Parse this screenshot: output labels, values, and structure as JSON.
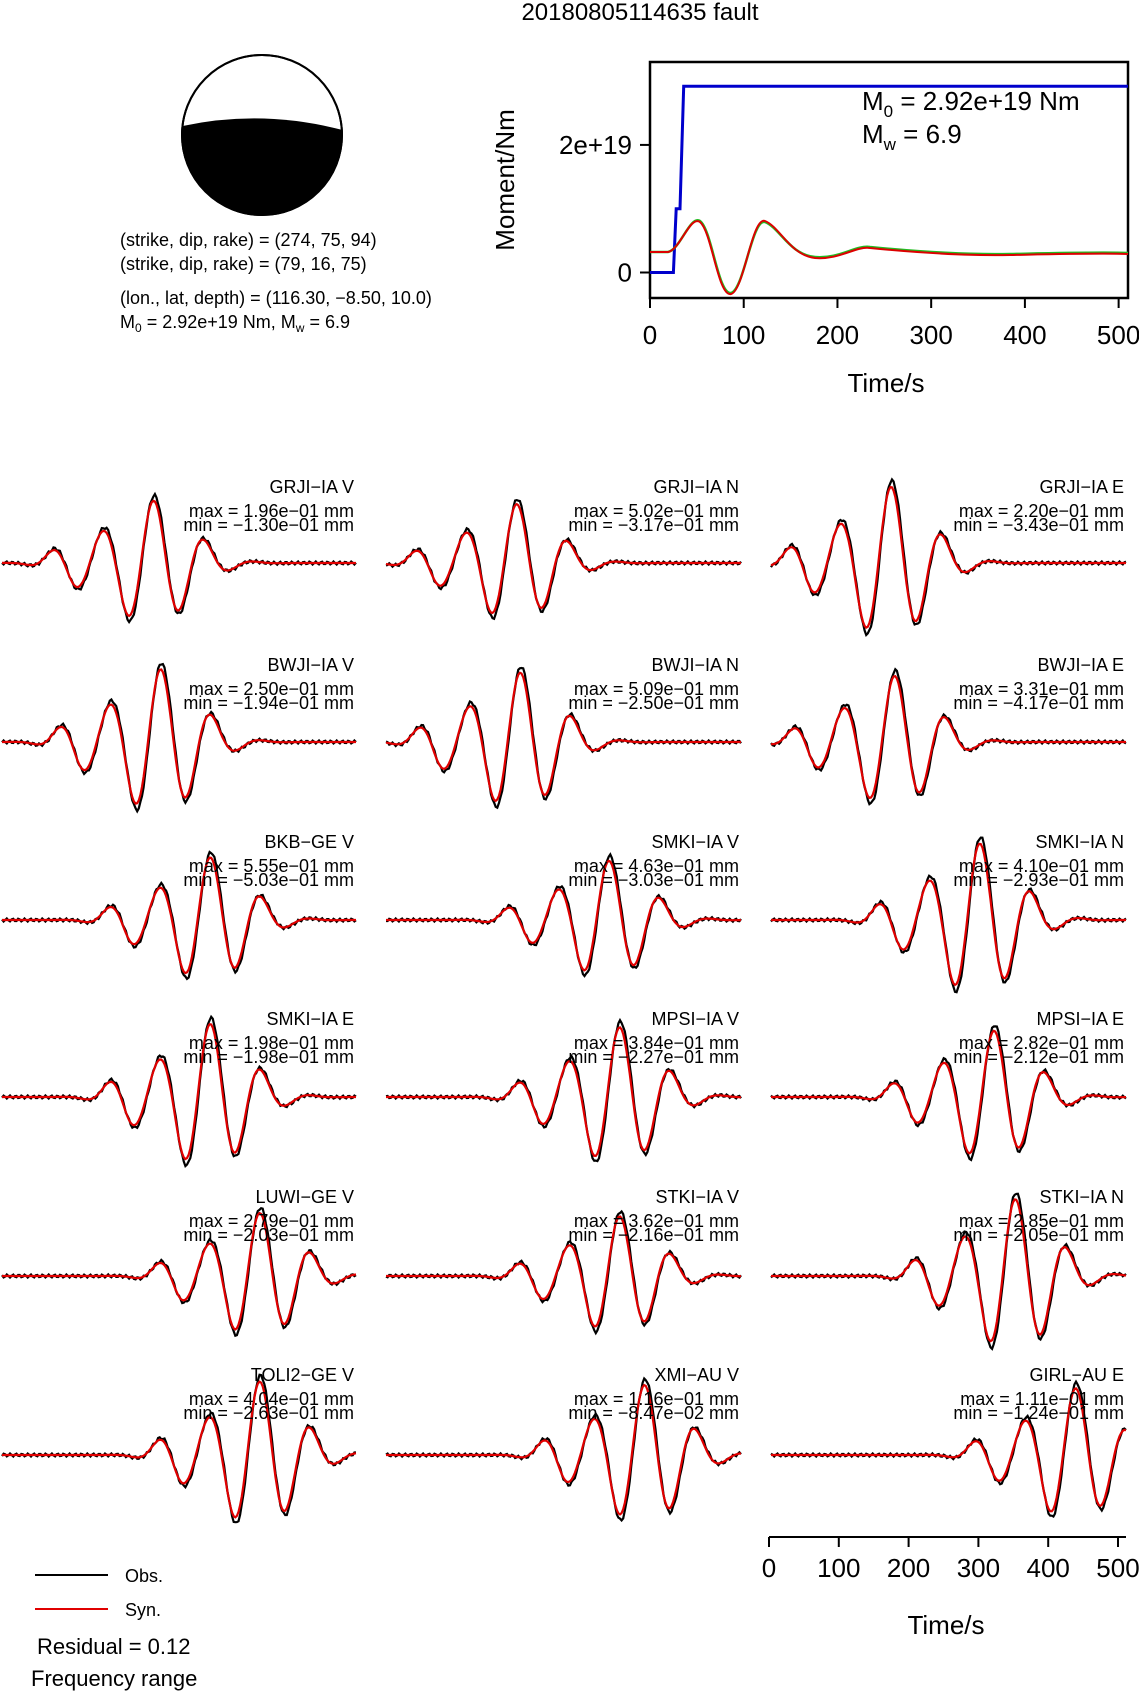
{
  "title": "20180805114635 fault",
  "beachball": {
    "np1": "(strike, dip, rake) = (274, 75, 94)",
    "np2": "(strike, dip, rake) = (79, 16, 75)",
    "location": "(lon., lat, depth) = (116.30, −8.50, 10.0)",
    "m0_line": {
      "m": "M",
      "sub": "0",
      "rest": " = 2.92e+19 Nm, M",
      "sub2": "w",
      "rest2": " = 6.9"
    }
  },
  "moment_panel": {
    "ylabel": "Moment/Nm",
    "xlabel": "Time/s",
    "m0": {
      "m": "M",
      "sub": "0",
      "rest": " = 2.92e+19 Nm"
    },
    "mw": {
      "m": "M",
      "sub": "w",
      "rest": " = 6.9"
    },
    "xticks": [
      "0",
      "100",
      "200",
      "300",
      "400",
      "500"
    ],
    "yticks": [
      "0",
      "2e+19"
    ]
  },
  "colors": {
    "obs": "#000000",
    "syn": "#e00000",
    "moment": "#0000cc",
    "stf_green": "#22bb22"
  },
  "traces": [
    {
      "label": "GRJI−IA V",
      "max": "max = 1.96e−01 mm",
      "min": "min = −1.30e−01 mm"
    },
    {
      "label": "GRJI−IA N",
      "max": "max = 5.02e−01 mm",
      "min": "min = −3.17e−01 mm"
    },
    {
      "label": "GRJI−IA E",
      "max": "max = 2.20e−01 mm",
      "min": "min = −3.43e−01 mm"
    },
    {
      "label": "BWJI−IA V",
      "max": "max = 2.50e−01 mm",
      "min": "min = −1.94e−01 mm"
    },
    {
      "label": "BWJI−IA N",
      "max": "max = 5.09e−01 mm",
      "min": "min = −2.50e−01 mm"
    },
    {
      "label": "BWJI−IA E",
      "max": "max = 3.31e−01 mm",
      "min": "min = −4.17e−01 mm"
    },
    {
      "label": "BKB−GE V",
      "max": "max = 5.55e−01 mm",
      "min": "min = −5.03e−01 mm"
    },
    {
      "label": "SMKI−IA V",
      "max": "max = 4.63e−01 mm",
      "min": "min = −3.03e−01 mm"
    },
    {
      "label": "SMKI−IA N",
      "max": "max = 4.10e−01 mm",
      "min": "min = −2.93e−01 mm"
    },
    {
      "label": "SMKI−IA E",
      "max": "max = 1.98e−01 mm",
      "min": "min = −1.98e−01 mm"
    },
    {
      "label": "MPSI−IA V",
      "max": "max = 3.84e−01 mm",
      "min": "min = −2.27e−01 mm"
    },
    {
      "label": "MPSI−IA E",
      "max": "max = 2.82e−01 mm",
      "min": "min = −2.12e−01 mm"
    },
    {
      "label": "LUWI−GE V",
      "max": "max = 2.79e−01 mm",
      "min": "min = −2.03e−01 mm"
    },
    {
      "label": "STKI−IA V",
      "max": "max = 3.62e−01 mm",
      "min": "min = −2.16e−01 mm"
    },
    {
      "label": "STKI−IA N",
      "max": "max = 2.85e−01 mm",
      "min": "min = −2.05e−01 mm"
    },
    {
      "label": "TOLI2−GE V",
      "max": "max = 4.04e−01 mm",
      "min": "min = −2.63e−01 mm"
    },
    {
      "label": "XMI−AU V",
      "max": "max = 1.16e−01 mm",
      "min": "min = −8.47e−02 mm"
    },
    {
      "label": "GIRL−AU E",
      "max": "max = 1.11e−01 mm",
      "min": "min = −1.24e−01 mm"
    }
  ],
  "bottom_axis": {
    "xlabel": "Time/s",
    "xticks": [
      "0",
      "100",
      "200",
      "300",
      "400",
      "500"
    ]
  },
  "legend": {
    "obs": "Obs.",
    "syn": "Syn."
  },
  "residual": "Residual = 0.12",
  "frequency": "Frequency range",
  "chart_data": [
    {
      "type": "line",
      "xlabel": "Time/s",
      "ylabel": "Moment/Nm",
      "xlim": [
        0,
        510
      ],
      "ylim": [
        -4e+18,
        3.3e+19
      ],
      "series": [
        {
          "name": "",
          "x": [
            0,
            25,
            28,
            32,
            36,
            40,
            42,
            510
          ],
          "y": [
            0,
            0,
            1e+19,
            1e+19,
            2.92e+19,
            2.92e+19,
            2.92e+19,
            2.92e+19
          ]
        }
      ],
      "yticks": [
        0,
        2e+19
      ],
      "xticks": [
        0,
        100,
        200,
        300,
        400,
        500
      ]
    },
    {
      "type": "line",
      "xlabel": "Time/s",
      "xlim": [
        0,
        510
      ],
      "legend": [
        "Obs.",
        "Syn."
      ],
      "stations": [
        "GRJI−IA V",
        "GRJI−IA N",
        "GRJI−IA E",
        "BWJI−IA V",
        "BWJI−IA N",
        "BWJI−IA E",
        "BKB−GE V",
        "SMKI−IA V",
        "SMKI−IA N",
        "SMKI−IA E",
        "MPSI−IA V",
        "MPSI−IA E",
        "LUWI−GE V",
        "STKI−IA V",
        "STKI−IA N",
        "TOLI2−GE V",
        "XMI−AU V",
        "GIRL−AU E"
      ],
      "max_mm": [
        0.196,
        0.502,
        0.22,
        0.25,
        0.509,
        0.331,
        0.555,
        0.463,
        0.41,
        0.198,
        0.384,
        0.282,
        0.279,
        0.362,
        0.285,
        0.404,
        0.116,
        0.111
      ],
      "min_mm": [
        -0.13,
        -0.317,
        -0.343,
        -0.194,
        -0.25,
        -0.417,
        -0.503,
        -0.303,
        -0.293,
        -0.198,
        -0.227,
        -0.212,
        -0.203,
        -0.216,
        -0.205,
        -0.263,
        -0.0847,
        -0.124
      ],
      "residual": 0.12
    }
  ]
}
